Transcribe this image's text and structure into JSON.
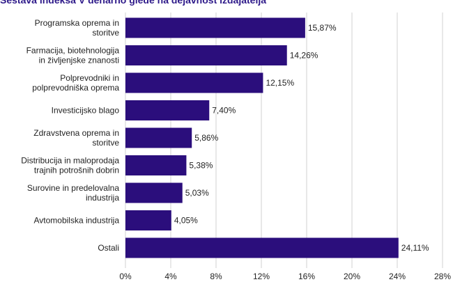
{
  "chart_data": {
    "type": "bar",
    "orientation": "horizontal",
    "title": "Sestava indeksa V denarno glede na dejavnost izdajatelja",
    "xlabel": "",
    "ylabel": "",
    "xlim": [
      0,
      28
    ],
    "x_ticks": [
      "0%",
      "4%",
      "8%",
      "12%",
      "16%",
      "20%",
      "24%",
      "28%"
    ],
    "grid": true,
    "bar_color": "#2b0e7c",
    "categories": [
      [
        "Programska oprema in",
        "storitve"
      ],
      [
        "Farmacija, biotehnologija",
        "in življenjske znanosti"
      ],
      [
        "Polprevodniki in",
        "polprevodniška oprema"
      ],
      [
        "Investicijsko blago"
      ],
      [
        "Zdravstvena oprema in",
        "storitve"
      ],
      [
        "Distribucija in maloprodaja",
        "trajnih potrošnih dobrin"
      ],
      [
        "Surovine in predelovalna",
        "industrija"
      ],
      [
        "Avtomobilska industrija"
      ],
      [
        "Ostali"
      ]
    ],
    "values": [
      15.87,
      14.26,
      12.15,
      7.4,
      5.86,
      5.38,
      5.03,
      4.05,
      24.11
    ],
    "value_labels": [
      "15,87%",
      "14,26%",
      "12,15%",
      "7,40%",
      "5,86%",
      "5,38%",
      "5,03%",
      "4,05%",
      "24,11%"
    ]
  }
}
